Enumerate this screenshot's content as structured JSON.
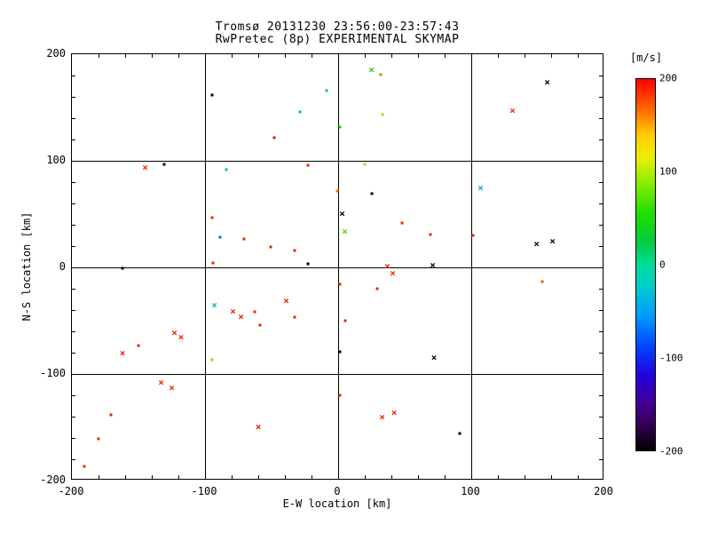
{
  "chart_data": {
    "type": "scatter",
    "title": "Tromsø 20131230 23:56:00-23:57:43",
    "subtitle": "RwPretec (8p) EXPERIMENTAL SKYMAP",
    "xlabel": "E-W location [km]",
    "ylabel": "N-S location [km]",
    "xlim": [
      -200,
      200
    ],
    "ylim": [
      -200,
      200
    ],
    "xticks": [
      -200,
      -100,
      0,
      100,
      200
    ],
    "yticks": [
      -200,
      -100,
      0,
      100,
      200
    ],
    "minor_tick": 20,
    "grid": true,
    "background": "#ffffff",
    "axis_color": "#000000",
    "colorbar": {
      "label": "[m/s]",
      "max": 200,
      "min": -200,
      "ticks": [
        200,
        100,
        0,
        -100,
        -200
      ],
      "gradient": [
        {
          "color": "#ff0000",
          "pos": 0
        },
        {
          "color": "#ff6600",
          "pos": 8
        },
        {
          "color": "#ffcc00",
          "pos": 15
        },
        {
          "color": "#eeee00",
          "pos": 21
        },
        {
          "color": "#88ee00",
          "pos": 28
        },
        {
          "color": "#22dd00",
          "pos": 36
        },
        {
          "color": "#00cc44",
          "pos": 44
        },
        {
          "color": "#00dd99",
          "pos": 50
        },
        {
          "color": "#00cccc",
          "pos": 56
        },
        {
          "color": "#0099ff",
          "pos": 64
        },
        {
          "color": "#0044ff",
          "pos": 72
        },
        {
          "color": "#2200dd",
          "pos": 80
        },
        {
          "color": "#440099",
          "pos": 87
        },
        {
          "color": "#330055",
          "pos": 93
        },
        {
          "color": "#000000",
          "pos": 100
        }
      ]
    },
    "points": [
      {
        "x": 25,
        "y": 185,
        "c": "#33cc00",
        "m": "x"
      },
      {
        "x": 32,
        "y": 181,
        "c": "#999900",
        "m": "d"
      },
      {
        "x": 157,
        "y": 173,
        "c": "#000000",
        "m": "x"
      },
      {
        "x": -95,
        "y": 162,
        "c": "#000000",
        "m": "d"
      },
      {
        "x": -29,
        "y": 146,
        "c": "#00bbbb",
        "m": "d"
      },
      {
        "x": -9,
        "y": 166,
        "c": "#00bbaa",
        "m": "d"
      },
      {
        "x": 131,
        "y": 147,
        "c": "#ee2200",
        "m": "x"
      },
      {
        "x": 33,
        "y": 143,
        "c": "#cccc00",
        "m": "d"
      },
      {
        "x": 1,
        "y": 132,
        "c": "#22cc00",
        "m": "d"
      },
      {
        "x": -48,
        "y": 122,
        "c": "#cc2200",
        "m": "d"
      },
      {
        "x": -145,
        "y": 93,
        "c": "#ee2200",
        "m": "x"
      },
      {
        "x": -131,
        "y": 97,
        "c": "#000000",
        "m": "d"
      },
      {
        "x": -84,
        "y": 92,
        "c": "#00bbbb",
        "m": "d"
      },
      {
        "x": -23,
        "y": 96,
        "c": "#ee2200",
        "m": "d"
      },
      {
        "x": 20,
        "y": 97,
        "c": "#cccc00",
        "m": "d"
      },
      {
        "x": 107,
        "y": 74,
        "c": "#2299dd",
        "m": "x"
      },
      {
        "x": -1,
        "y": 72,
        "c": "#ff6600",
        "m": "d"
      },
      {
        "x": 25,
        "y": 69,
        "c": "#000000",
        "m": "d"
      },
      {
        "x": -95,
        "y": 47,
        "c": "#ee2200",
        "m": "d"
      },
      {
        "x": 3,
        "y": 50,
        "c": "#000000",
        "m": "x"
      },
      {
        "x": 5,
        "y": 33,
        "c": "#66cc00",
        "m": "x"
      },
      {
        "x": 48,
        "y": 42,
        "c": "#ee2200",
        "m": "d"
      },
      {
        "x": 69,
        "y": 31,
        "c": "#ee2200",
        "m": "d"
      },
      {
        "x": 101,
        "y": 30,
        "c": "#ee2200",
        "m": "d"
      },
      {
        "x": 149,
        "y": 22,
        "c": "#000000",
        "m": "x"
      },
      {
        "x": 161,
        "y": 24,
        "c": "#000000",
        "m": "x"
      },
      {
        "x": -89,
        "y": 28,
        "c": "#0066ff",
        "m": "d"
      },
      {
        "x": -71,
        "y": 27,
        "c": "#ee2200",
        "m": "d"
      },
      {
        "x": -51,
        "y": 19,
        "c": "#ee2200",
        "m": "d"
      },
      {
        "x": -33,
        "y": 16,
        "c": "#ee2200",
        "m": "d"
      },
      {
        "x": -94,
        "y": 4,
        "c": "#ee2200",
        "m": "d"
      },
      {
        "x": -162,
        "y": -1,
        "c": "#000000",
        "m": "d"
      },
      {
        "x": -23,
        "y": 3,
        "c": "#000000",
        "m": "d"
      },
      {
        "x": 37,
        "y": 1,
        "c": "#ee2200",
        "m": "x"
      },
      {
        "x": 41,
        "y": -6,
        "c": "#ee2200",
        "m": "x"
      },
      {
        "x": 71,
        "y": 2,
        "c": "#000000",
        "m": "x"
      },
      {
        "x": 153,
        "y": -13,
        "c": "#ff5500",
        "m": "d"
      },
      {
        "x": 1,
        "y": -16,
        "c": "#ee2200",
        "m": "d"
      },
      {
        "x": 29,
        "y": -20,
        "c": "#ee2200",
        "m": "d"
      },
      {
        "x": -93,
        "y": -36,
        "c": "#00bbbb",
        "m": "x"
      },
      {
        "x": -79,
        "y": -42,
        "c": "#ee2200",
        "m": "x"
      },
      {
        "x": -73,
        "y": -47,
        "c": "#ee2200",
        "m": "x"
      },
      {
        "x": -63,
        "y": -42,
        "c": "#ee2200",
        "m": "d"
      },
      {
        "x": -39,
        "y": -32,
        "c": "#ee2200",
        "m": "x"
      },
      {
        "x": -33,
        "y": -47,
        "c": "#ee2200",
        "m": "d"
      },
      {
        "x": -59,
        "y": -54,
        "c": "#ee2200",
        "m": "d"
      },
      {
        "x": -118,
        "y": -66,
        "c": "#ee2200",
        "m": "x"
      },
      {
        "x": -123,
        "y": -62,
        "c": "#ee2200",
        "m": "x"
      },
      {
        "x": -162,
        "y": -81,
        "c": "#ee2200",
        "m": "x"
      },
      {
        "x": -150,
        "y": -73,
        "c": "#ee2200",
        "m": "d"
      },
      {
        "x": -95,
        "y": -87,
        "c": "#99cc00",
        "m": "d"
      },
      {
        "x": 5,
        "y": -50,
        "c": "#ee2200",
        "m": "d"
      },
      {
        "x": 1,
        "y": -79,
        "c": "#000000",
        "m": "d"
      },
      {
        "x": 72,
        "y": -85,
        "c": "#000000",
        "m": "x"
      },
      {
        "x": -133,
        "y": -108,
        "c": "#ee2200",
        "m": "x"
      },
      {
        "x": -125,
        "y": -113,
        "c": "#ee2200",
        "m": "x"
      },
      {
        "x": -171,
        "y": -138,
        "c": "#ee2200",
        "m": "d"
      },
      {
        "x": -60,
        "y": -150,
        "c": "#cc2200",
        "m": "x"
      },
      {
        "x": 33,
        "y": -141,
        "c": "#ee2200",
        "m": "x"
      },
      {
        "x": 42,
        "y": -137,
        "c": "#ee2200",
        "m": "x"
      },
      {
        "x": 91,
        "y": -156,
        "c": "#000000",
        "m": "d"
      },
      {
        "x": -180,
        "y": -161,
        "c": "#ee2200",
        "m": "d"
      },
      {
        "x": -191,
        "y": -187,
        "c": "#ee2200",
        "m": "d"
      },
      {
        "x": 1,
        "y": -120,
        "c": "#ee2200",
        "m": "d"
      }
    ]
  }
}
